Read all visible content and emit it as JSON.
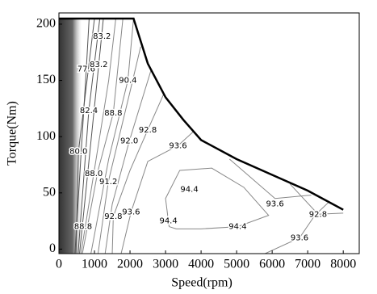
{
  "chart_data": {
    "type": "contour",
    "xlabel": "Speed(rpm)",
    "ylabel": "Torque(Nm)",
    "xlim": [
      0,
      8450
    ],
    "ylim": [
      -4,
      210
    ],
    "xticks": [
      0,
      1000,
      2000,
      3000,
      4000,
      5000,
      6000,
      7000,
      8000
    ],
    "yticks": [
      0,
      50,
      100,
      150,
      200
    ],
    "envelope": {
      "x": [
        0,
        2100,
        2500,
        3000,
        3500,
        4000,
        5000,
        6000,
        7000,
        8000
      ],
      "y": [
        205,
        205,
        165,
        135,
        115,
        97,
        80,
        66,
        52,
        35
      ]
    },
    "contours": [
      {
        "level": 77.6,
        "x": [
          450,
          770,
          850
        ],
        "y": [
          -4,
          160,
          205
        ]
      },
      {
        "level": 80.0,
        "x": [
          480,
          550,
          1000
        ],
        "y": [
          -4,
          87,
          205
        ]
      },
      {
        "level": 82.4,
        "x": [
          540,
          840,
          1150
        ],
        "y": [
          -4,
          123,
          205
        ]
      },
      {
        "level": 83.2,
        "x": [
          580,
          1120,
          1250
        ],
        "y": [
          -4,
          164,
          205
        ]
      },
      {
        "level": 88.0,
        "x": [
          620,
          980,
          1400,
          1600
        ],
        "y": [
          -4,
          67,
          150,
          205
        ]
      },
      {
        "level": 88.8,
        "x": [
          660,
          1100,
          1530,
          1800
        ],
        "y": [
          -4,
          70,
          121,
          205
        ]
      },
      {
        "level": 90.4,
        "x": [
          900,
          1400,
          1940,
          2100
        ],
        "y": [
          -4,
          80,
          150,
          205
        ]
      },
      {
        "level": 91.2,
        "x": [
          1100,
          1390,
          2000,
          2300
        ],
        "y": [
          -4,
          60,
          140,
          180
        ]
      },
      {
        "level": 92.0,
        "x": [
          1300,
          1500,
          1980,
          2600
        ],
        "y": [
          -4,
          40,
          96,
          160
        ]
      },
      {
        "level": 92.8,
        "x": [
          1500,
          1530,
          2000,
          2500,
          2950
        ],
        "y": [
          -4,
          29,
          70,
          106,
          138
        ]
      },
      {
        "level": 92.8,
        "x": [
          6500,
          7290,
          8000
        ],
        "y": [
          58,
          31,
          32
        ]
      },
      {
        "level": 93.6,
        "x": [
          1750,
          2030,
          2500,
          3350,
          3800
        ],
        "y": [
          -4,
          33,
          78,
          92,
          105
        ]
      },
      {
        "level": 93.6,
        "x": [
          4800,
          6080,
          7100
        ],
        "y": [
          80,
          45,
          48
        ]
      },
      {
        "level": 93.6,
        "x": [
          5800,
          6770,
          7200,
          7600
        ],
        "y": [
          -4,
          10,
          30,
          42
        ]
      },
      {
        "level": 94.4,
        "x": [
          3100,
          3000,
          3400,
          4300,
          5200,
          5900,
          5030,
          4000,
          3300,
          3100
        ],
        "y": [
          20,
          45,
          70,
          72,
          55,
          30,
          20,
          18,
          18,
          20
        ]
      }
    ],
    "contour_labels": [
      {
        "value": 83.2,
        "label": "83.2",
        "x": 1210,
        "y": 189
      },
      {
        "value": 77.6,
        "label": "77.6",
        "x": 770,
        "y": 160
      },
      {
        "value": 83.2,
        "label": "83.2",
        "x": 1120,
        "y": 164
      },
      {
        "value": 82.4,
        "label": "82.4",
        "x": 840,
        "y": 123
      },
      {
        "value": 90.4,
        "label": "90.4",
        "x": 1940,
        "y": 150
      },
      {
        "value": 88.8,
        "label": "88.8",
        "x": 1530,
        "y": 121
      },
      {
        "value": 80.0,
        "label": "80.0",
        "x": 550,
        "y": 87
      },
      {
        "value": 92.8,
        "label": "92.8",
        "x": 2500,
        "y": 106
      },
      {
        "value": 92.0,
        "label": "92.0",
        "x": 1980,
        "y": 96
      },
      {
        "value": 93.6,
        "label": "93.6",
        "x": 3350,
        "y": 92
      },
      {
        "value": 88.0,
        "label": "88.0",
        "x": 980,
        "y": 67
      },
      {
        "value": 91.2,
        "label": "91.2",
        "x": 1390,
        "y": 60
      },
      {
        "value": 94.4,
        "label": "94.4",
        "x": 3670,
        "y": 53
      },
      {
        "value": 93.6,
        "label": "93.6",
        "x": 6080,
        "y": 40
      },
      {
        "value": 92.8,
        "label": "92.8",
        "x": 7290,
        "y": 31
      },
      {
        "value": 88.8,
        "label": "88.8",
        "x": 680,
        "y": 20
      },
      {
        "value": 92.8,
        "label": "92.8",
        "x": 1530,
        "y": 29
      },
      {
        "value": 93.6,
        "label": "93.6",
        "x": 2030,
        "y": 33
      },
      {
        "value": 94.4,
        "label": "94.4",
        "x": 3080,
        "y": 25
      },
      {
        "value": 94.4,
        "label": "94.4",
        "x": 5030,
        "y": 20
      },
      {
        "value": 93.6,
        "label": "93.6",
        "x": 6770,
        "y": 10
      }
    ]
  }
}
